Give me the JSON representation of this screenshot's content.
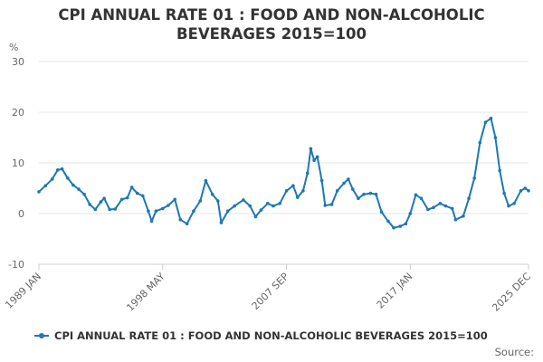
{
  "chart_title_lines": [
    "CPI ANNUAL RATE 01 : FOOD AND NON-ALCOHOLIC",
    "BEVERAGES 2015=100"
  ],
  "source_text": "Source:",
  "colors": {
    "series": "#1f77b4",
    "grid": "#e6e6e6",
    "axis_text": "#666666",
    "title": "#333333"
  },
  "chart_data": {
    "type": "line",
    "title": "CPI ANNUAL RATE 01 : FOOD AND NON-ALCOHOLIC BEVERAGES 2015=100",
    "ylabel": "%",
    "ylim": [
      -10,
      30
    ],
    "y_ticks": [
      -10,
      0,
      10,
      20,
      30
    ],
    "x_tick_labels": [
      "1989 JAN",
      "1998 MAY",
      "2007 SEP",
      "2017 JAN",
      "2025 DEC"
    ],
    "x_range": [
      "1989-01",
      "2025-12"
    ],
    "grid": true,
    "legend_position": "bottom",
    "series": [
      {
        "name": "CPI ANNUAL RATE 01 : FOOD AND NON-ALCOHOLIC BEVERAGES 2015=100",
        "points": [
          [
            "1989-01",
            4.3
          ],
          [
            "1989-07",
            5.5
          ],
          [
            "1990-01",
            6.8
          ],
          [
            "1990-06",
            8.6
          ],
          [
            "1990-10",
            8.8
          ],
          [
            "1991-03",
            7.0
          ],
          [
            "1991-08",
            5.6
          ],
          [
            "1992-01",
            4.8
          ],
          [
            "1992-06",
            3.8
          ],
          [
            "1992-11",
            1.8
          ],
          [
            "1993-04",
            0.8
          ],
          [
            "1993-09",
            2.3
          ],
          [
            "1993-12",
            3.0
          ],
          [
            "1994-05",
            0.8
          ],
          [
            "1994-10",
            0.9
          ],
          [
            "1995-04",
            2.8
          ],
          [
            "1995-09",
            3.1
          ],
          [
            "1996-01",
            5.2
          ],
          [
            "1996-06",
            4.0
          ],
          [
            "1996-11",
            3.5
          ],
          [
            "1997-04",
            0.5
          ],
          [
            "1997-07",
            -1.5
          ],
          [
            "1997-11",
            0.5
          ],
          [
            "1998-05",
            1.0
          ],
          [
            "1998-10",
            1.6
          ],
          [
            "1999-04",
            2.8
          ],
          [
            "1999-09",
            -1.2
          ],
          [
            "2000-03",
            -2.0
          ],
          [
            "2000-09",
            0.5
          ],
          [
            "2001-03",
            2.5
          ],
          [
            "2001-08",
            6.5
          ],
          [
            "2002-02",
            3.8
          ],
          [
            "2002-07",
            2.5
          ],
          [
            "2002-10",
            -1.8
          ],
          [
            "2003-04",
            0.5
          ],
          [
            "2003-10",
            1.5
          ],
          [
            "2004-06",
            2.7
          ],
          [
            "2004-12",
            1.5
          ],
          [
            "2005-05",
            -0.6
          ],
          [
            "2005-10",
            0.7
          ],
          [
            "2006-04",
            2.0
          ],
          [
            "2006-09",
            1.5
          ],
          [
            "2007-03",
            2.0
          ],
          [
            "2007-09",
            4.5
          ],
          [
            "2008-03",
            5.5
          ],
          [
            "2008-07",
            3.2
          ],
          [
            "2008-12",
            4.5
          ],
          [
            "2009-04",
            8.0
          ],
          [
            "2009-07",
            12.8
          ],
          [
            "2009-10",
            10.5
          ],
          [
            "2010-01",
            11.2
          ],
          [
            "2010-05",
            6.5
          ],
          [
            "2010-08",
            1.6
          ],
          [
            "2011-02",
            1.8
          ],
          [
            "2011-07",
            4.5
          ],
          [
            "2012-01",
            6.0
          ],
          [
            "2012-05",
            6.8
          ],
          [
            "2012-09",
            4.8
          ],
          [
            "2013-02",
            3.0
          ],
          [
            "2013-07",
            3.8
          ],
          [
            "2014-01",
            4.0
          ],
          [
            "2014-06",
            3.8
          ],
          [
            "2014-11",
            0.3
          ],
          [
            "2015-05",
            -1.5
          ],
          [
            "2015-10",
            -2.8
          ],
          [
            "2016-04",
            -2.5
          ],
          [
            "2016-09",
            -2.0
          ],
          [
            "2017-01",
            0.0
          ],
          [
            "2017-06",
            3.7
          ],
          [
            "2017-11",
            3.0
          ],
          [
            "2018-05",
            0.8
          ],
          [
            "2018-10",
            1.2
          ],
          [
            "2019-04",
            2.0
          ],
          [
            "2019-09",
            1.5
          ],
          [
            "2020-03",
            1.0
          ],
          [
            "2020-06",
            -1.2
          ],
          [
            "2021-01",
            -0.5
          ],
          [
            "2021-06",
            3.0
          ],
          [
            "2021-11",
            7.0
          ],
          [
            "2022-04",
            14.0
          ],
          [
            "2022-09",
            18.0
          ],
          [
            "2023-02",
            18.8
          ],
          [
            "2023-06",
            15.0
          ],
          [
            "2023-10",
            8.5
          ],
          [
            "2024-02",
            4.0
          ],
          [
            "2024-06",
            1.5
          ],
          [
            "2024-11",
            2.0
          ],
          [
            "2025-05",
            4.5
          ],
          [
            "2025-09",
            5.0
          ],
          [
            "2025-12",
            4.5
          ]
        ]
      }
    ]
  }
}
